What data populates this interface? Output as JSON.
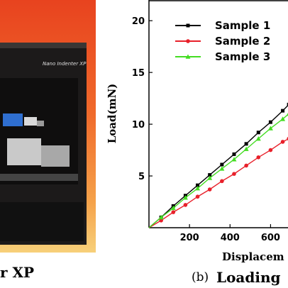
{
  "photo": {
    "instrument_label": "Nano Indenter XP",
    "caption": "r XP"
  },
  "panel_label": "(b)",
  "panel_title": "Loading",
  "chart_data": {
    "type": "line",
    "xlabel": "Displacem",
    "ylabel": "Load(mN)",
    "xlim": [
      0,
      700
    ],
    "ylim": [
      0,
      22
    ],
    "xticks": [
      200,
      400,
      600
    ],
    "yticks": [
      5,
      10,
      15,
      20
    ],
    "legend_position": "top-right",
    "series": [
      {
        "name": "Sample 1",
        "color": "#000000",
        "marker": "square",
        "x": [
          0,
          60,
          120,
          180,
          240,
          300,
          360,
          420,
          480,
          540,
          600,
          660,
          690
        ],
        "y": [
          0,
          1.0,
          2.1,
          3.1,
          4.1,
          5.1,
          6.1,
          7.1,
          8.1,
          9.2,
          10.2,
          11.3,
          11.9
        ]
      },
      {
        "name": "Sample 2",
        "color": "#e8202a",
        "marker": "circle",
        "x": [
          0,
          60,
          120,
          180,
          240,
          300,
          360,
          420,
          480,
          540,
          600,
          660,
          690
        ],
        "y": [
          0,
          0.7,
          1.5,
          2.2,
          3.0,
          3.7,
          4.5,
          5.2,
          6.0,
          6.8,
          7.5,
          8.3,
          8.6
        ]
      },
      {
        "name": "Sample 3",
        "color": "#44dd22",
        "marker": "triangle",
        "x": [
          0,
          60,
          120,
          180,
          240,
          300,
          360,
          420,
          480,
          540,
          600,
          660,
          690
        ],
        "y": [
          0,
          1.0,
          1.9,
          2.9,
          3.8,
          4.8,
          5.7,
          6.6,
          7.6,
          8.6,
          9.6,
          10.5,
          11.0
        ]
      }
    ]
  }
}
